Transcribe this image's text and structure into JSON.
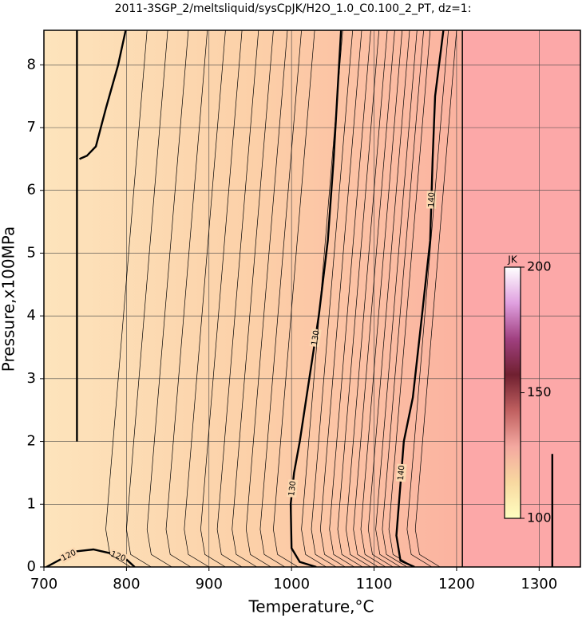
{
  "chart_data": {
    "type": "contour",
    "title": "2011-3SGP_2/meltsliquid/sysCpJK/H2O_1.0_C0.100_2_PT, dz=1:",
    "x_label": "Temperature,°C",
    "y_label": "Pressure,x100MPa",
    "xlim": [
      700,
      1350
    ],
    "ylim": [
      0,
      8.55
    ],
    "xticks": [
      700,
      800,
      900,
      1000,
      1100,
      1200,
      1300
    ],
    "yticks": [
      0,
      1,
      2,
      3,
      4,
      5,
      6,
      7,
      8
    ],
    "grid": true,
    "boundary_x": 1207,
    "contours": [
      {
        "level": 120,
        "style": "thick",
        "x": [
          703,
          720,
          740,
          760,
          780,
          800,
          810
        ],
        "y": [
          0,
          0.12,
          0.25,
          0.28,
          0.22,
          0.12,
          0
        ]
      },
      {
        "level": 130,
        "style": "thick",
        "x": [
          1030,
          1010,
          1000,
          999,
          1003,
          1010,
          1018,
          1025,
          1033,
          1044,
          1051,
          1060
        ],
        "y": [
          0,
          0.08,
          0.3,
          1,
          1.5,
          2,
          2.7,
          3.3,
          4,
          5.2,
          6.5,
          8.55
        ]
      },
      {
        "level": 140,
        "style": "thick",
        "x": [
          1149,
          1132,
          1127,
          1130,
          1136,
          1147,
          1158,
          1168,
          1171,
          1174,
          1184
        ],
        "y": [
          0,
          0.1,
          0.5,
          1,
          2,
          2.7,
          4,
          5.2,
          6.5,
          7.5,
          8.55
        ]
      },
      {
        "style": "thick",
        "x": [
          740,
          740
        ],
        "y": [
          2,
          8.55
        ]
      },
      {
        "style": "thick",
        "x": [
          743,
          752,
          763,
          775,
          790,
          799
        ],
        "y": [
          6.5,
          6.55,
          6.7,
          7.3,
          8.0,
          8.55
        ]
      },
      {
        "style": "thick",
        "x": [
          1316,
          1316
        ],
        "y": [
          0,
          1.8
        ]
      },
      {
        "style": "thin",
        "x": [
          805,
          780,
          775,
          825
        ],
        "y": [
          0,
          0.2,
          0.6,
          8.55
        ]
      },
      {
        "style": "thin",
        "x": [
          830,
          805,
          800,
          850
        ],
        "y": [
          0,
          0.2,
          0.6,
          8.55
        ]
      },
      {
        "style": "thin",
        "x": [
          855,
          830,
          825,
          875
        ],
        "y": [
          0,
          0.2,
          0.6,
          8.55
        ]
      },
      {
        "style": "thin",
        "x": [
          878,
          853,
          848,
          898
        ],
        "y": [
          0,
          0.2,
          0.6,
          8.55
        ]
      },
      {
        "style": "thin",
        "x": [
          900,
          875,
          870,
          920
        ],
        "y": [
          0,
          0.2,
          0.6,
          8.55
        ]
      },
      {
        "style": "thin",
        "x": [
          920,
          895,
          890,
          940
        ],
        "y": [
          0,
          0.2,
          0.6,
          8.55
        ]
      },
      {
        "style": "thin",
        "x": [
          940,
          915,
          910,
          960
        ],
        "y": [
          0,
          0.2,
          0.6,
          8.55
        ]
      },
      {
        "style": "thin",
        "x": [
          958,
          933,
          928,
          978
        ],
        "y": [
          0,
          0.2,
          0.6,
          8.55
        ]
      },
      {
        "style": "thin",
        "x": [
          975,
          950,
          945,
          995
        ],
        "y": [
          0,
          0.2,
          0.6,
          8.55
        ]
      },
      {
        "style": "thin",
        "x": [
          992,
          967,
          962,
          1012
        ],
        "y": [
          0,
          0.2,
          0.6,
          8.55
        ]
      },
      {
        "style": "thin",
        "x": [
          1008,
          983,
          978,
          1028
        ],
        "y": [
          0,
          0.2,
          0.6,
          8.55
        ]
      },
      {
        "style": "thin",
        "x": [
          1042,
          1017,
          1012,
          1062
        ],
        "y": [
          0,
          0.2,
          0.6,
          8.55
        ]
      },
      {
        "style": "thin",
        "x": [
          1054,
          1029,
          1024,
          1074
        ],
        "y": [
          0,
          0.2,
          0.6,
          8.55
        ]
      },
      {
        "style": "thin",
        "x": [
          1065,
          1040,
          1035,
          1085
        ],
        "y": [
          0,
          0.2,
          0.6,
          8.55
        ]
      },
      {
        "style": "thin",
        "x": [
          1076,
          1051,
          1046,
          1096
        ],
        "y": [
          0,
          0.2,
          0.6,
          8.55
        ]
      },
      {
        "style": "thin",
        "x": [
          1086,
          1061,
          1056,
          1106
        ],
        "y": [
          0,
          0.2,
          0.6,
          8.55
        ]
      },
      {
        "style": "thin",
        "x": [
          1096,
          1071,
          1066,
          1116
        ],
        "y": [
          0,
          0.2,
          0.6,
          8.55
        ]
      },
      {
        "style": "thin",
        "x": [
          1105,
          1080,
          1075,
          1125
        ],
        "y": [
          0,
          0.2,
          0.6,
          8.55
        ]
      },
      {
        "style": "thin",
        "x": [
          1114,
          1089,
          1084,
          1134
        ],
        "y": [
          0,
          0.2,
          0.6,
          8.55
        ]
      },
      {
        "style": "thin",
        "x": [
          1123,
          1098,
          1093,
          1143
        ],
        "y": [
          0,
          0.2,
          0.6,
          8.55
        ]
      },
      {
        "style": "thin",
        "x": [
          1132,
          1107,
          1102,
          1152
        ],
        "y": [
          0,
          0.2,
          0.6,
          8.55
        ]
      },
      {
        "style": "thin",
        "x": [
          1140,
          1115,
          1110,
          1160
        ],
        "y": [
          0,
          0.2,
          0.6,
          8.55
        ]
      },
      {
        "style": "thin",
        "x": [
          1148,
          1123,
          1118,
          1168
        ],
        "y": [
          0,
          0.2,
          0.6,
          8.55
        ]
      },
      {
        "style": "thin",
        "x": [
          1170,
          1145,
          1140,
          1190
        ],
        "y": [
          0,
          0.2,
          0.6,
          8.55
        ]
      },
      {
        "style": "thin",
        "x": [
          1180,
          1155,
          1150,
          1200
        ],
        "y": [
          0,
          0.2,
          0.6,
          8.55
        ]
      }
    ],
    "colorbar": {
      "label": "JK",
      "clim": [
        100,
        200
      ],
      "ticks": [
        100,
        150,
        200
      ],
      "colormap": [
        "#ffffc0",
        "#f8d8a0",
        "#f4a8a0",
        "#c06060",
        "#702030",
        "#a04080",
        "#e0a0e0",
        "#ffffff"
      ]
    }
  }
}
